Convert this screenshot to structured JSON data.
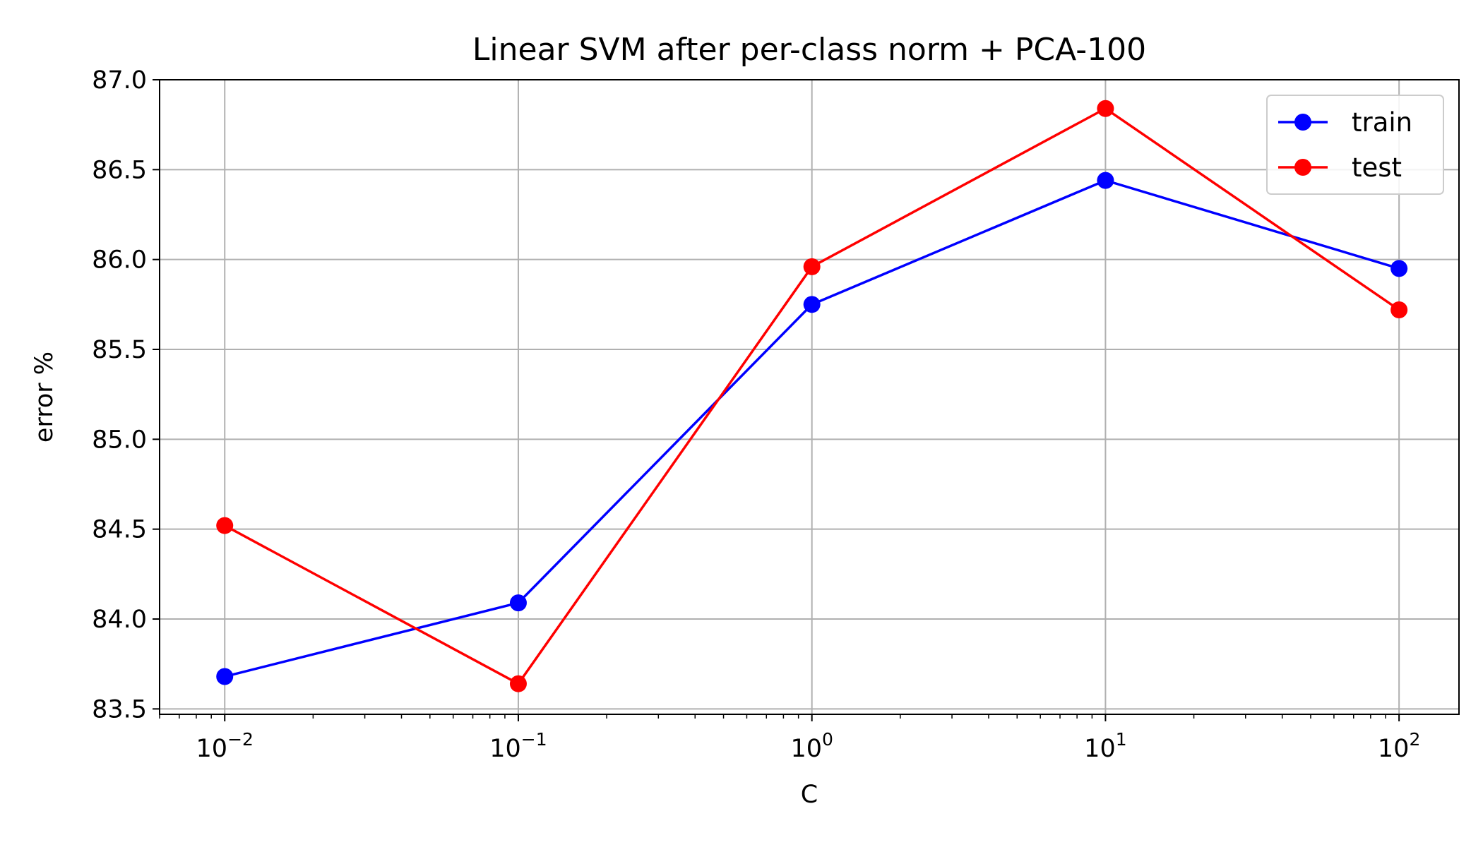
{
  "chart_data": {
    "type": "line",
    "title": "Linear SVM after per-class norm + PCA-100",
    "xlabel": "C",
    "ylabel": "error %",
    "xscale": "log",
    "xlim": [
      0.006,
      160
    ],
    "ylim": [
      83.47,
      87.0
    ],
    "x": [
      0.01,
      0.1,
      1,
      10,
      100
    ],
    "x_ticks": [
      {
        "value": 0.01,
        "base": "10",
        "exp": "−2"
      },
      {
        "value": 0.1,
        "base": "10",
        "exp": "−1"
      },
      {
        "value": 1,
        "base": "10",
        "exp": "0"
      },
      {
        "value": 10,
        "base": "10",
        "exp": "1"
      },
      {
        "value": 100,
        "base": "10",
        "exp": "2"
      }
    ],
    "y_ticks": [
      83.5,
      84.0,
      84.5,
      85.0,
      85.5,
      86.0,
      86.5,
      87.0
    ],
    "y_tick_labels": [
      "83.5",
      "84.0",
      "84.5",
      "85.0",
      "85.5",
      "86.0",
      "86.5",
      "87.0"
    ],
    "series": [
      {
        "name": "train",
        "color": "#0000ff",
        "values": [
          83.68,
          84.09,
          85.75,
          86.44,
          85.95
        ]
      },
      {
        "name": "test",
        "color": "#ff0000",
        "values": [
          84.52,
          83.64,
          85.96,
          86.84,
          85.72
        ]
      }
    ],
    "grid": true,
    "legend_position": "top-right"
  }
}
